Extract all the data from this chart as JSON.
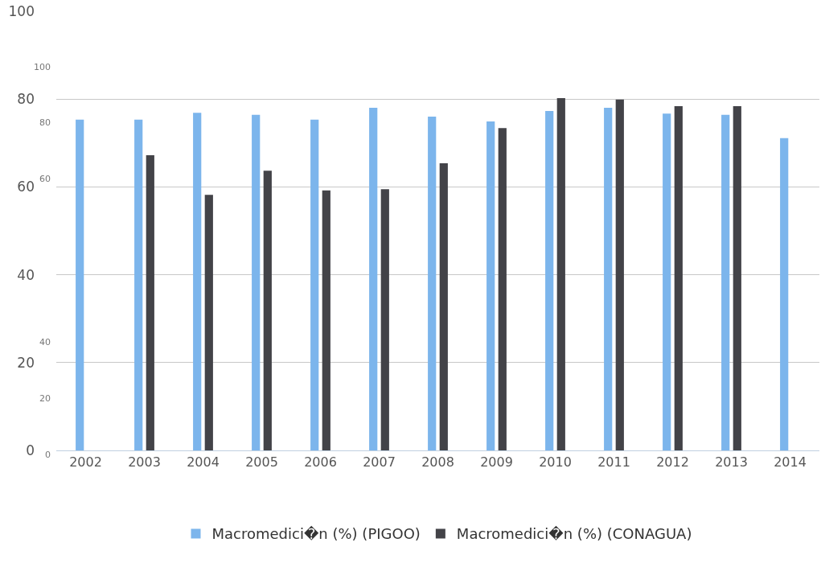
{
  "chart_data": {
    "type": "bar",
    "categories": [
      "2002",
      "2003",
      "2004",
      "2005",
      "2006",
      "2007",
      "2008",
      "2009",
      "2010",
      "2011",
      "2012",
      "2013",
      "2014"
    ],
    "series": [
      {
        "name": "Macromedici�n (%) (PIGOO)",
        "color": "#7cb5ec",
        "values": [
          75.3,
          75.3,
          76.9,
          76.4,
          75.3,
          78.0,
          76.0,
          74.9,
          77.3,
          78.0,
          76.7,
          76.4,
          71.1
        ]
      },
      {
        "name": "Macromedici�n (%) (CONAGUA)",
        "color": "#434348",
        "values": [
          null,
          67.2,
          58.2,
          63.7,
          59.2,
          59.5,
          65.4,
          73.4,
          80.2,
          79.9,
          78.4,
          78.4,
          null
        ]
      }
    ],
    "ylim": [
      0,
      100
    ],
    "yticks": [
      0,
      20,
      40,
      60,
      80,
      100
    ],
    "annotations": [
      "100",
      "80",
      "60",
      "40",
      "20",
      "0"
    ],
    "grid": "y",
    "legend": "bottom"
  }
}
